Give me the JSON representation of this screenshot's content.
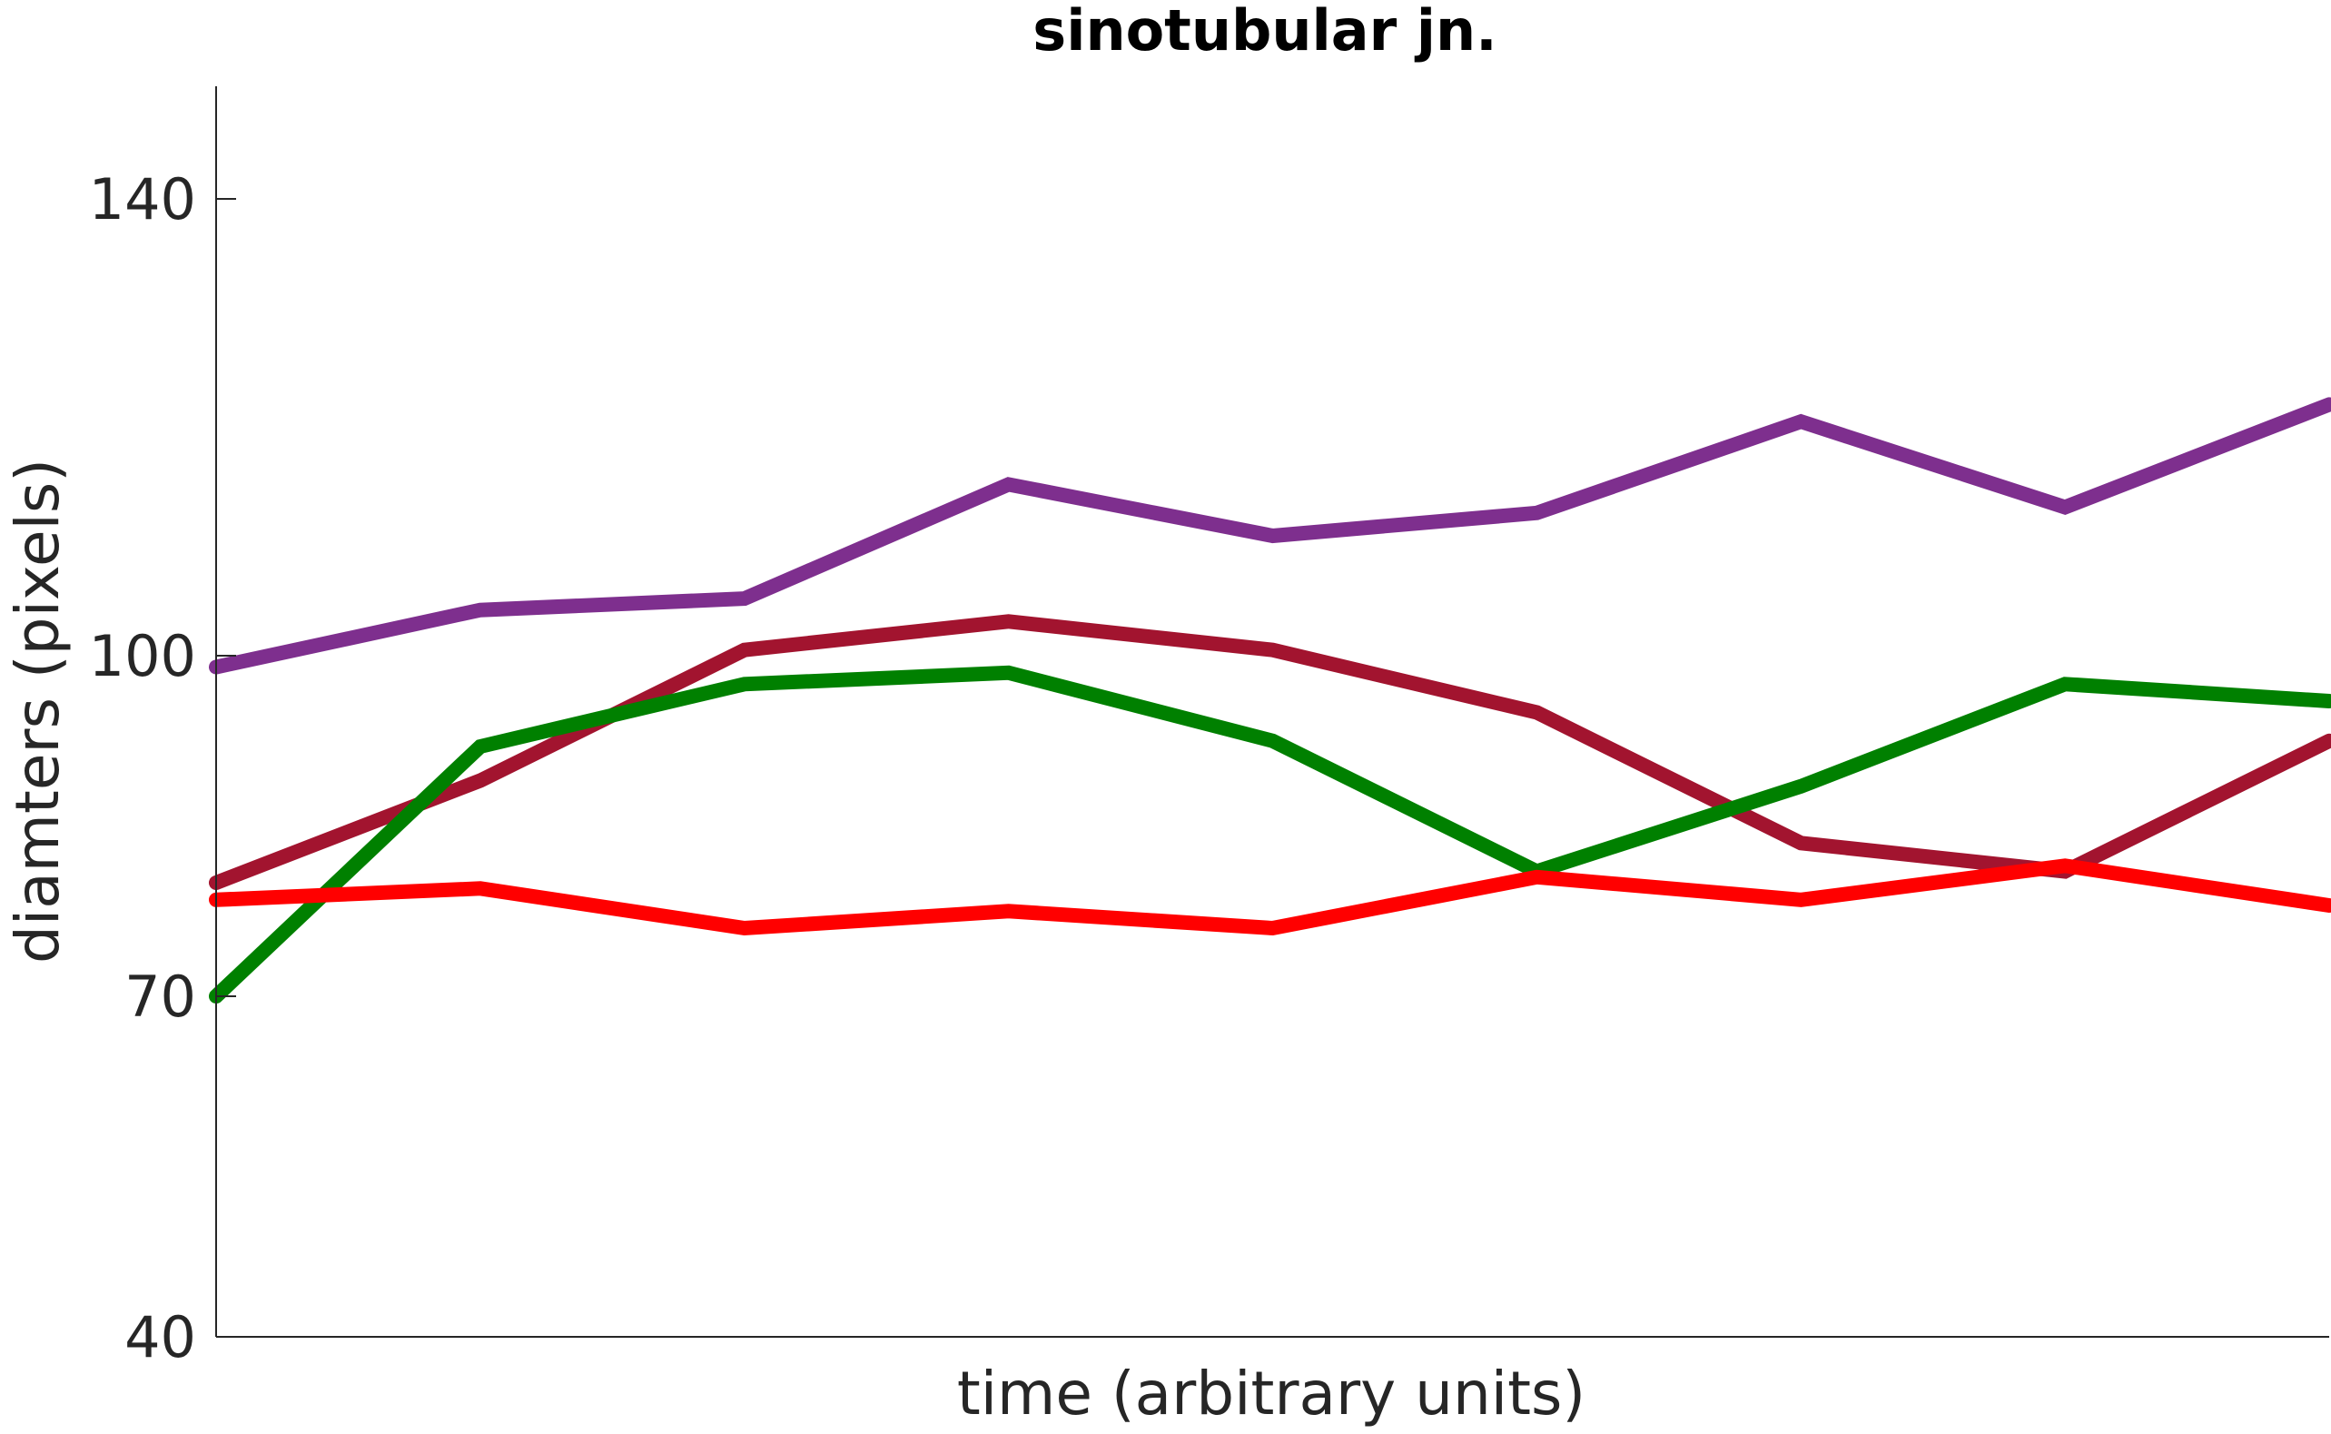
{
  "chart_data": {
    "type": "line",
    "title": "sinotubular jn.",
    "xlabel": "time (arbitrary units)",
    "ylabel": "diamters (pixels)",
    "ylim": [
      40,
      150
    ],
    "yticks": [
      40,
      70,
      100,
      140
    ],
    "xlim": [
      1,
      9
    ],
    "x": [
      1,
      2,
      3,
      4,
      5,
      6,
      7,
      8,
      9
    ],
    "grid": false,
    "legend": "none",
    "series": [
      {
        "color": "#7E2F8E",
        "values": [
          99,
          104,
          105,
          115,
          110.5,
          112.5,
          120.5,
          113,
          122
        ]
      },
      {
        "color": "#A2142F",
        "values": [
          80,
          89,
          100.5,
          103,
          100.5,
          95,
          83.5,
          81,
          92.5
        ]
      },
      {
        "color": "#008000",
        "values": [
          70,
          92,
          97.5,
          98.5,
          92.5,
          81,
          88.5,
          97.5,
          96
        ]
      },
      {
        "color": "#FF0000",
        "values": [
          78.5,
          79.5,
          76,
          77.5,
          76,
          80.5,
          78.5,
          81.5,
          78
        ]
      }
    ]
  }
}
